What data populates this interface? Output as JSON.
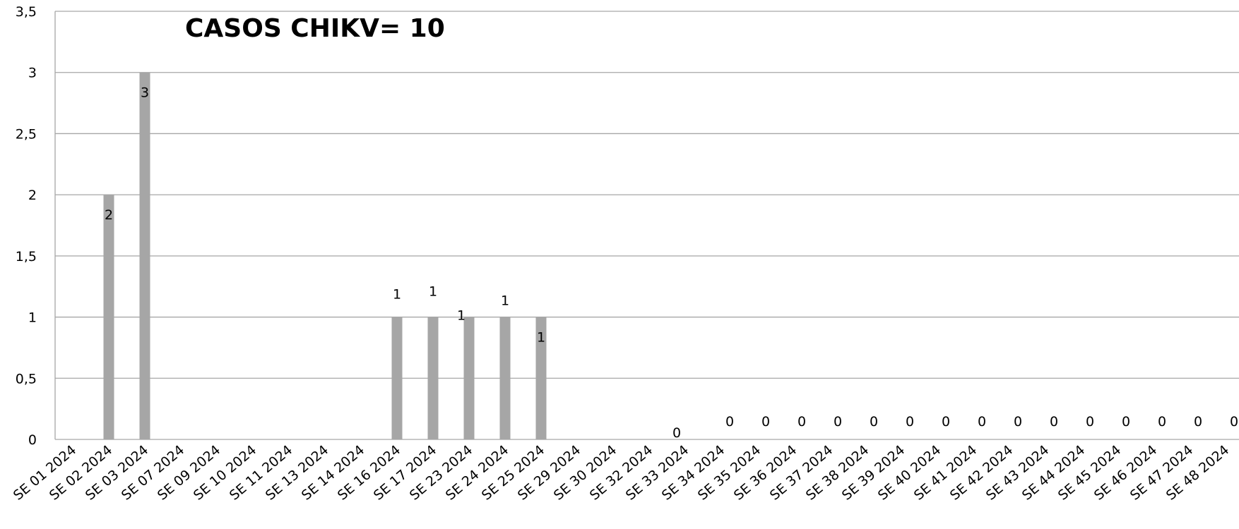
{
  "chart_data": {
    "type": "bar",
    "title": "CASOS CHIKV= 10",
    "xlabel": "",
    "ylabel": "",
    "ylim": [
      0,
      3.5
    ],
    "yticks": [
      "0",
      "0,5",
      "1",
      "1,5",
      "2",
      "2,5",
      "3",
      "3,5"
    ],
    "ytick_values": [
      0,
      0.5,
      1,
      1.5,
      2,
      2.5,
      3,
      3.5
    ],
    "grid": true,
    "legend": "none",
    "bar_color": "#a6a6a6",
    "categories": [
      "SE 01 2024",
      "SE 02 2024",
      "SE 03 2024",
      "SE 07 2024",
      "SE 09 2024",
      "SE 10 2024",
      "SE 11 2024",
      "SE 13 2024",
      "SE 14 2024",
      "SE 16 2024",
      "SE 17 2024",
      "SE 23 2024",
      "SE 24 2024",
      "SE 25 2024",
      "SE 29 2024",
      "SE 30 2024",
      "SE 32 2024",
      "SE 33 2024",
      "SE 34 2024",
      "SE 35 2024",
      "SE 36 2024",
      "SE 37 2024",
      "SE 38 2024",
      "SE 39 2024",
      "SE 40 2024",
      "SE 41 2024",
      "SE 42 2024",
      "SE 43 2024",
      "SE 44 2024",
      "SE 45 2024",
      "SE 46 2024",
      "SE 47 2024",
      "SE 48 2024"
    ],
    "values": [
      0,
      2,
      3,
      0,
      0,
      0,
      0,
      0,
      0,
      1,
      1,
      1,
      1,
      1,
      0,
      0,
      0,
      0,
      0,
      0,
      0,
      0,
      0,
      0,
      0,
      0,
      0,
      0,
      0,
      0,
      0,
      0,
      0
    ],
    "data_labels": [
      "",
      "2",
      "3",
      "",
      "",
      "",
      "",
      "",
      "",
      "1",
      "1",
      "1",
      "1",
      "1",
      "",
      "",
      "",
      "0",
      "0",
      "0",
      "0",
      "0",
      "0",
      "0",
      "0",
      "0",
      "0",
      "0",
      "0",
      "0",
      "0",
      "0",
      "0"
    ]
  }
}
